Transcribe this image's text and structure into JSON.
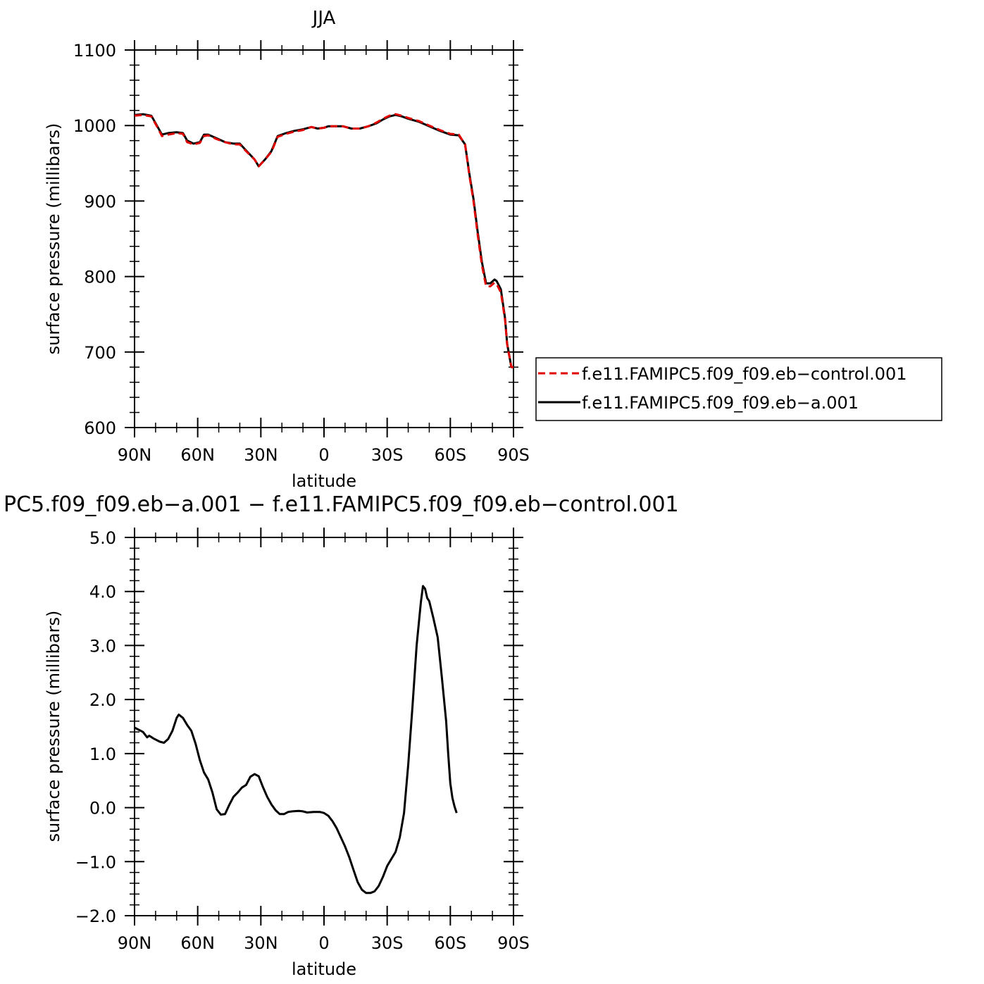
{
  "chart_data": [
    {
      "type": "line",
      "title": "JJA",
      "xlabel": "latitude",
      "ylabel": "surface pressure (millibars)",
      "xlim": [
        90,
        -90
      ],
      "ylim": [
        600,
        1100
      ],
      "x_ticks": [
        90,
        60,
        30,
        0,
        -30,
        -60,
        -90
      ],
      "x_tick_labels": [
        "90N",
        "60N",
        "30N",
        "0",
        "30S",
        "60S",
        "90S"
      ],
      "y_ticks": [
        600,
        700,
        800,
        900,
        1000,
        1100
      ],
      "y_tick_labels": [
        "600",
        "700",
        "800",
        "900",
        "1000",
        "1100"
      ],
      "grid": false,
      "legend": "right",
      "series": [
        {
          "name": "f.e11.FAMIPC5.f09_f09.eb-control.001",
          "color": "#e00000",
          "dash": "dashed",
          "points": [
            [
              90,
              1013
            ],
            [
              86,
              1014
            ],
            [
              82,
              1012
            ],
            [
              79,
              997
            ],
            [
              77,
              986
            ],
            [
              74,
              988
            ],
            [
              70,
              990
            ],
            [
              67,
              989
            ],
            [
              65,
              978
            ],
            [
              62,
              975
            ],
            [
              59,
              977
            ],
            [
              57,
              986
            ],
            [
              55,
              987
            ],
            [
              51,
              982
            ],
            [
              47,
              978
            ],
            [
              43,
              975
            ],
            [
              40,
              975
            ],
            [
              37,
              966
            ],
            [
              33,
              955
            ],
            [
              31,
              946
            ],
            [
              28,
              955
            ],
            [
              25,
              965
            ],
            [
              22,
              985
            ],
            [
              18,
              989
            ],
            [
              14,
              992
            ],
            [
              10,
              994
            ],
            [
              6,
              998
            ],
            [
              3,
              996
            ],
            [
              0,
              997
            ],
            [
              -2,
              999
            ],
            [
              -5,
              999
            ],
            [
              -9,
              999
            ],
            [
              -13,
              996
            ],
            [
              -17,
              996
            ],
            [
              -21,
              999
            ],
            [
              -25,
              1004
            ],
            [
              -28,
              1009
            ],
            [
              -31,
              1013
            ],
            [
              -34,
              1015
            ],
            [
              -37,
              1013
            ],
            [
              -40,
              1010
            ],
            [
              -45,
              1006
            ],
            [
              -50,
              1000
            ],
            [
              -55,
              994
            ],
            [
              -60,
              989
            ],
            [
              -64,
              988
            ],
            [
              -67,
              975
            ],
            [
              -69,
              935
            ],
            [
              -71,
              900
            ],
            [
              -73,
              855
            ],
            [
              -75,
              815
            ],
            [
              -77,
              787
            ],
            [
              -79,
              787
            ],
            [
              -81,
              792
            ],
            [
              -82,
              790
            ],
            [
              -84,
              779
            ],
            [
              -86,
              743
            ],
            [
              -87,
              710
            ],
            [
              -89,
              680
            ],
            [
              -90,
              680
            ]
          ]
        },
        {
          "name": "f.e11.FAMIPC5.f09_f09.eb-a.001",
          "color": "#000000",
          "dash": "solid",
          "points": [
            [
              90,
              1014
            ],
            [
              86,
              1015
            ],
            [
              82,
              1013
            ],
            [
              79,
              998
            ],
            [
              77,
              988
            ],
            [
              74,
              990
            ],
            [
              70,
              991
            ],
            [
              67,
              990
            ],
            [
              65,
              980
            ],
            [
              62,
              976
            ],
            [
              59,
              978
            ],
            [
              57,
              988
            ],
            [
              55,
              988
            ],
            [
              51,
              983
            ],
            [
              47,
              978
            ],
            [
              43,
              976
            ],
            [
              40,
              976
            ],
            [
              37,
              967
            ],
            [
              33,
              955
            ],
            [
              31,
              946
            ],
            [
              28,
              955
            ],
            [
              25,
              966
            ],
            [
              22,
              986
            ],
            [
              18,
              990
            ],
            [
              14,
              993
            ],
            [
              10,
              995
            ],
            [
              6,
              998
            ],
            [
              3,
              996
            ],
            [
              0,
              997
            ],
            [
              -2,
              999
            ],
            [
              -5,
              999
            ],
            [
              -9,
              999
            ],
            [
              -13,
              996
            ],
            [
              -17,
              996
            ],
            [
              -21,
              999
            ],
            [
              -25,
              1003
            ],
            [
              -28,
              1008
            ],
            [
              -31,
              1012
            ],
            [
              -34,
              1014
            ],
            [
              -37,
              1012
            ],
            [
              -40,
              1009
            ],
            [
              -45,
              1005
            ],
            [
              -50,
              999
            ],
            [
              -55,
              993
            ],
            [
              -60,
              988
            ],
            [
              -64,
              987
            ],
            [
              -67,
              975
            ],
            [
              -69,
              937
            ],
            [
              -71,
              903
            ],
            [
              -73,
              859
            ],
            [
              -75,
              819
            ],
            [
              -77,
              791
            ],
            [
              -79,
              791
            ],
            [
              -81,
              796
            ],
            [
              -82,
              794
            ],
            [
              -84,
              783
            ],
            [
              -86,
              745
            ],
            [
              -87,
              711
            ],
            [
              -89,
              680
            ],
            [
              -90,
              680
            ]
          ]
        }
      ]
    },
    {
      "type": "line",
      "title": "PC5.f09_f09.eb-a.001 - f.e11.FAMIPC5.f09_f09.eb-control.001",
      "xlabel": "latitude",
      "ylabel": "surface pressure (millibars)",
      "xlim": [
        90,
        -90
      ],
      "ylim": [
        -2.0,
        5.0
      ],
      "x_ticks": [
        90,
        60,
        30,
        0,
        -30,
        -60,
        -90
      ],
      "x_tick_labels": [
        "90N",
        "60N",
        "30N",
        "0",
        "30S",
        "60S",
        "90S"
      ],
      "y_ticks": [
        -2.0,
        -1.0,
        0.0,
        1.0,
        2.0,
        3.0,
        4.0,
        5.0
      ],
      "y_tick_labels": [
        "-2.0",
        "-1.0",
        "0.0",
        "1.0",
        "2.0",
        "3.0",
        "4.0",
        "5.0"
      ],
      "grid": false,
      "series": [
        {
          "color": "#000000",
          "dash": "solid",
          "points": [
            [
              90,
              1.48
            ],
            [
              88,
              1.44
            ],
            [
              86,
              1.4
            ],
            [
              84,
              1.3
            ],
            [
              83,
              1.33
            ],
            [
              81,
              1.28
            ],
            [
              78,
              1.22
            ],
            [
              76,
              1.2
            ],
            [
              74,
              1.27
            ],
            [
              72,
              1.42
            ],
            [
              70,
              1.66
            ],
            [
              69,
              1.72
            ],
            [
              67,
              1.66
            ],
            [
              65,
              1.53
            ],
            [
              63,
              1.42
            ],
            [
              61,
              1.18
            ],
            [
              59,
              0.88
            ],
            [
              57,
              0.65
            ],
            [
              55,
              0.52
            ],
            [
              53,
              0.28
            ],
            [
              51,
              -0.03
            ],
            [
              49,
              -0.13
            ],
            [
              47,
              -0.12
            ],
            [
              45,
              0.05
            ],
            [
              43,
              0.2
            ],
            [
              41,
              0.28
            ],
            [
              39,
              0.37
            ],
            [
              37,
              0.42
            ],
            [
              35,
              0.57
            ],
            [
              33,
              0.62
            ],
            [
              31,
              0.58
            ],
            [
              29,
              0.38
            ],
            [
              27,
              0.2
            ],
            [
              25,
              0.06
            ],
            [
              23,
              -0.05
            ],
            [
              21,
              -0.12
            ],
            [
              19,
              -0.12
            ],
            [
              17,
              -0.08
            ],
            [
              15,
              -0.07
            ],
            [
              12,
              -0.06
            ],
            [
              10,
              -0.07
            ],
            [
              8,
              -0.09
            ],
            [
              5,
              -0.08
            ],
            [
              2,
              -0.08
            ],
            [
              0,
              -0.1
            ],
            [
              -2,
              -0.15
            ],
            [
              -4,
              -0.25
            ],
            [
              -6,
              -0.38
            ],
            [
              -8,
              -0.55
            ],
            [
              -10,
              -0.72
            ],
            [
              -12,
              -0.92
            ],
            [
              -14,
              -1.15
            ],
            [
              -16,
              -1.38
            ],
            [
              -18,
              -1.52
            ],
            [
              -20,
              -1.58
            ],
            [
              -22,
              -1.58
            ],
            [
              -24,
              -1.55
            ],
            [
              -26,
              -1.45
            ],
            [
              -28,
              -1.28
            ],
            [
              -30,
              -1.08
            ],
            [
              -32,
              -0.95
            ],
            [
              -34,
              -0.82
            ],
            [
              -36,
              -0.55
            ],
            [
              -38,
              -0.1
            ],
            [
              -40,
              0.8
            ],
            [
              -42,
              1.85
            ],
            [
              -44,
              3.0
            ],
            [
              -46,
              3.8
            ],
            [
              -47,
              4.1
            ],
            [
              -48,
              4.05
            ],
            [
              -49,
              3.88
            ],
            [
              -50,
              3.82
            ],
            [
              -52,
              3.5
            ],
            [
              -54,
              3.15
            ],
            [
              -56,
              2.4
            ],
            [
              -58,
              1.6
            ],
            [
              -59,
              1.0
            ],
            [
              -60,
              0.45
            ],
            [
              -61,
              0.18
            ],
            [
              -62,
              0.02
            ],
            [
              -63,
              -0.1
            ]
          ]
        }
      ]
    }
  ]
}
